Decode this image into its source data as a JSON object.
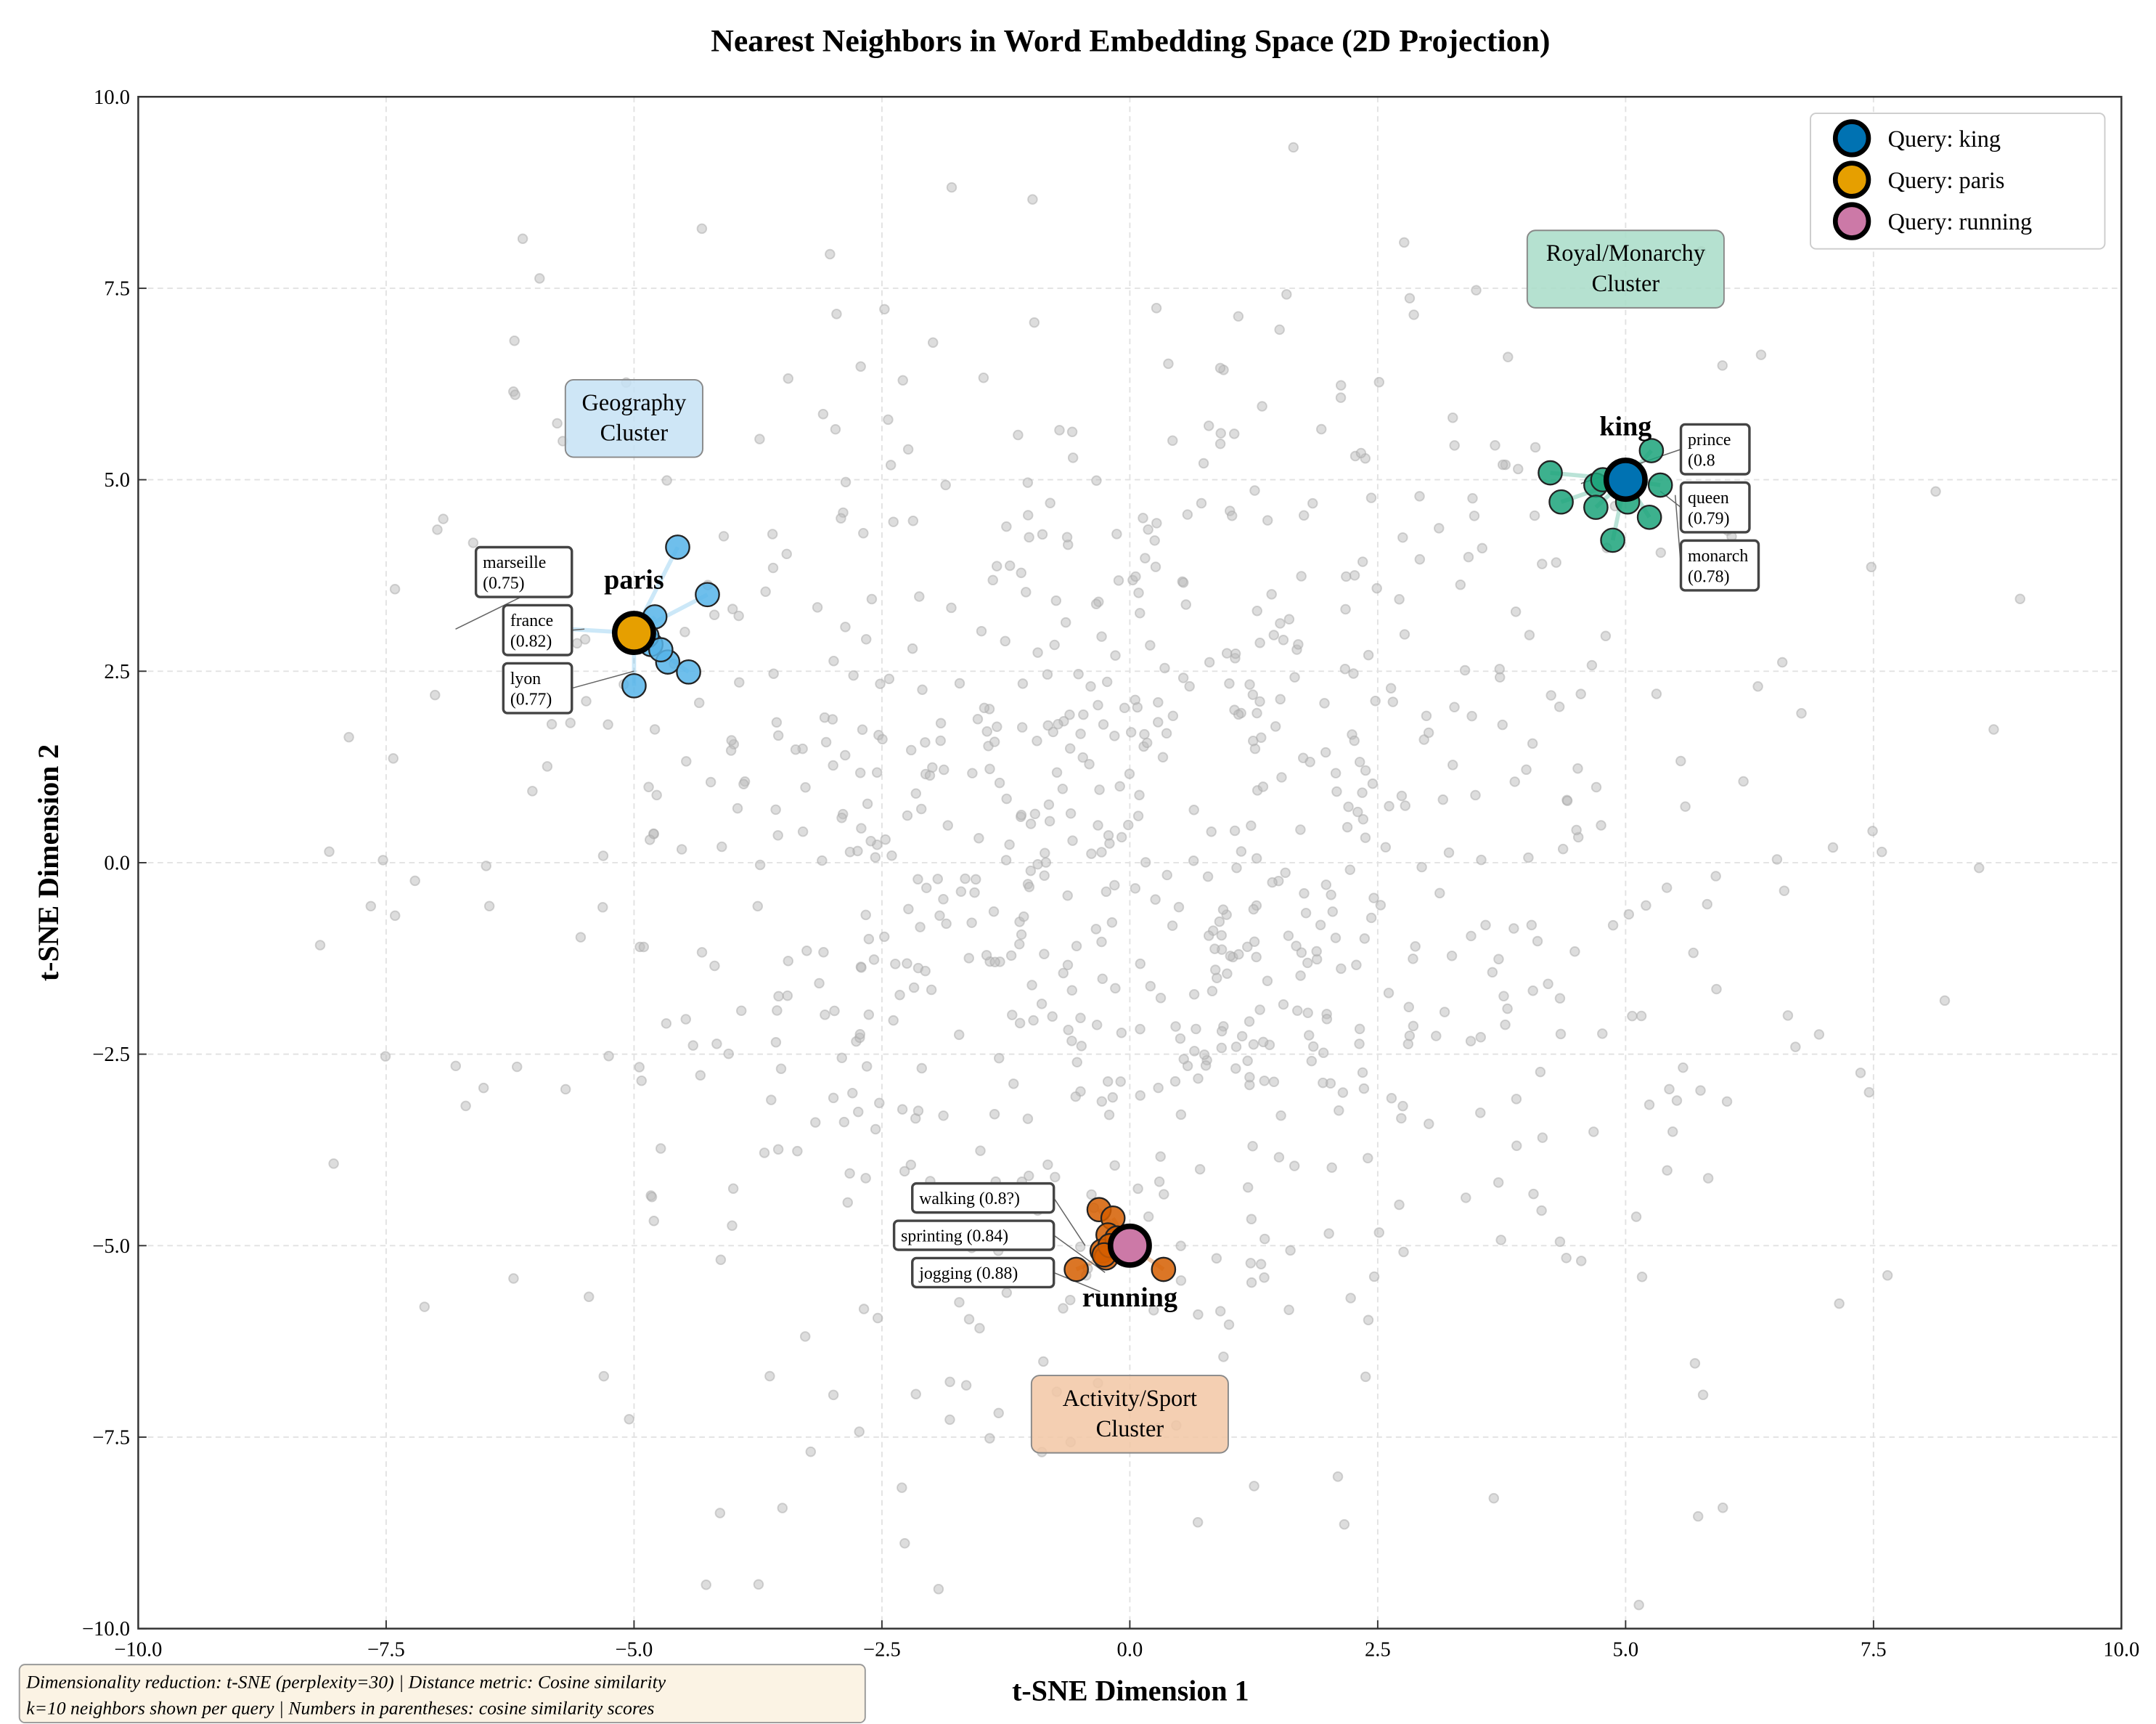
{
  "chart_data": {
    "type": "scatter",
    "title": "Nearest Neighbors in Word Embedding Space (2D Projection)",
    "xlabel": "t-SNE Dimension 1",
    "ylabel": "t-SNE Dimension 2",
    "xlim": [
      -10,
      10
    ],
    "ylim": [
      -10,
      10
    ],
    "xticks": [
      "−10.0",
      "−7.5",
      "−5.0",
      "−2.5",
      "0.0",
      "2.5",
      "5.0",
      "7.5",
      "10.0"
    ],
    "yticks": [
      "−10.0",
      "−7.5",
      "−5.0",
      "−2.5",
      "0.0",
      "2.5",
      "5.0",
      "7.5",
      "10.0"
    ],
    "tick_values": [
      -10,
      -7.5,
      -5,
      -2.5,
      0,
      2.5,
      5,
      7.5,
      10
    ],
    "grid": true,
    "legend_placement": "top-right",
    "background_color": "#bbbbbb",
    "queries": [
      {
        "word": "king",
        "legend": "Query: king",
        "x": 5,
        "y": 5,
        "color": "#0072b2",
        "neighbor_color": "#1ba37a",
        "neighbors": [
          [
            4.24,
            5.09
          ],
          [
            4.35,
            4.71
          ],
          [
            4.7,
            4.93
          ],
          [
            4.7,
            4.64
          ],
          [
            4.87,
            4.21
          ],
          [
            5.02,
            4.71
          ],
          [
            5.26,
            5.38
          ],
          [
            5.24,
            4.51
          ],
          [
            5.35,
            4.93
          ],
          [
            4.77,
            5.0
          ]
        ],
        "labels": [
          {
            "text": "prince",
            "sub": "(0.8",
            "x": 4.55,
            "y": 4.95
          },
          {
            "text": "queen",
            "sub": "(0.79)",
            "x": 5.35,
            "y": 4.85
          },
          {
            "text": "monarch",
            "sub": "(0.78)",
            "x": 5.5,
            "y": 4.8
          }
        ]
      },
      {
        "word": "paris",
        "legend": "Query: paris",
        "x": -5,
        "y": 3,
        "color": "#e69f00",
        "neighbor_color": "#56b4e9",
        "neighbors": [
          [
            -6.18,
            3.09
          ],
          [
            -4.56,
            4.12
          ],
          [
            -4.26,
            3.5
          ],
          [
            -4.79,
            3.21
          ],
          [
            -4.83,
            2.85
          ],
          [
            -4.66,
            2.62
          ],
          [
            -4.45,
            2.49
          ],
          [
            -5.0,
            2.31
          ],
          [
            -4.87,
            2.96
          ],
          [
            -4.73,
            2.78
          ]
        ],
        "labels": [
          {
            "text": "marseille",
            "sub": "(0.75)",
            "x": -6.8,
            "y": 3.05
          },
          {
            "text": "france",
            "sub": "(0.82)",
            "x": -5.5,
            "y": 3.05
          },
          {
            "text": "lyon",
            "sub": "(0.77)",
            "x": -5.0,
            "y": 2.5
          }
        ]
      },
      {
        "word": "running",
        "legend": "Query: running",
        "x": 0,
        "y": -5,
        "color": "#cc79a7",
        "neighbor_color": "#d55e00",
        "neighbors": [
          [
            -0.31,
            -4.53
          ],
          [
            -0.17,
            -4.64
          ],
          [
            -0.22,
            -4.86
          ],
          [
            -0.28,
            -5.07
          ],
          [
            -0.24,
            -5.16
          ],
          [
            -0.54,
            -5.31
          ],
          [
            0.34,
            -5.31
          ],
          [
            -0.13,
            -4.9
          ],
          [
            -0.2,
            -5.0
          ],
          [
            -0.26,
            -5.12
          ]
        ],
        "labels": [
          {
            "text": "walking (0.8?)",
            "x": -0.45,
            "y": -5.0
          },
          {
            "text": "sprinting (0.84)",
            "x": -0.25,
            "y": -5.35
          },
          {
            "text": "jogging (0.88)",
            "x": -0.3,
            "y": -5.6
          }
        ]
      }
    ],
    "clusters": [
      {
        "text": [
          "Geography",
          "Cluster"
        ],
        "x": -5,
        "y": 5.8,
        "color": "#c6e2f5"
      },
      {
        "text": [
          "Royal/Monarchy",
          "Cluster"
        ],
        "x": 5,
        "y": 7.75,
        "color": "#a8dcc8"
      },
      {
        "text": [
          "Activity/Sport",
          "Cluster"
        ],
        "x": 0,
        "y": -7.2,
        "color": "#f2c7a5"
      }
    ],
    "footnote": [
      "Dimensionality reduction: t-SNE (perplexity=30) | Distance metric: Cosine similarity",
      "k=10 neighbors shown per query | Numbers in parentheses: cosine similarity scores"
    ]
  }
}
